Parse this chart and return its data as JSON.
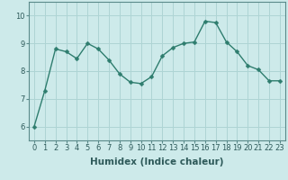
{
  "x": [
    0,
    1,
    2,
    3,
    4,
    5,
    6,
    7,
    8,
    9,
    10,
    11,
    12,
    13,
    14,
    15,
    16,
    17,
    18,
    19,
    20,
    21,
    22,
    23
  ],
  "y": [
    6.0,
    7.3,
    8.8,
    8.7,
    8.45,
    9.0,
    8.8,
    8.4,
    7.9,
    7.6,
    7.55,
    7.8,
    8.55,
    8.85,
    9.0,
    9.05,
    9.8,
    9.75,
    9.05,
    8.7,
    8.2,
    8.05,
    7.65,
    7.65
  ],
  "line_color": "#2e7d6e",
  "marker": "D",
  "marker_size": 2.5,
  "line_width": 1.0,
  "bg_color": "#cdeaea",
  "grid_color": "#aed4d4",
  "xlabel": "Humidex (Indice chaleur)",
  "ylabel": "",
  "xlim": [
    -0.5,
    23.5
  ],
  "ylim": [
    5.5,
    10.5
  ],
  "yticks": [
    6,
    7,
    8,
    9,
    10
  ],
  "xticks": [
    0,
    1,
    2,
    3,
    4,
    5,
    6,
    7,
    8,
    9,
    10,
    11,
    12,
    13,
    14,
    15,
    16,
    17,
    18,
    19,
    20,
    21,
    22,
    23
  ],
  "tick_fontsize": 6,
  "xlabel_fontsize": 7.5,
  "spine_color": "#5a8a8a"
}
